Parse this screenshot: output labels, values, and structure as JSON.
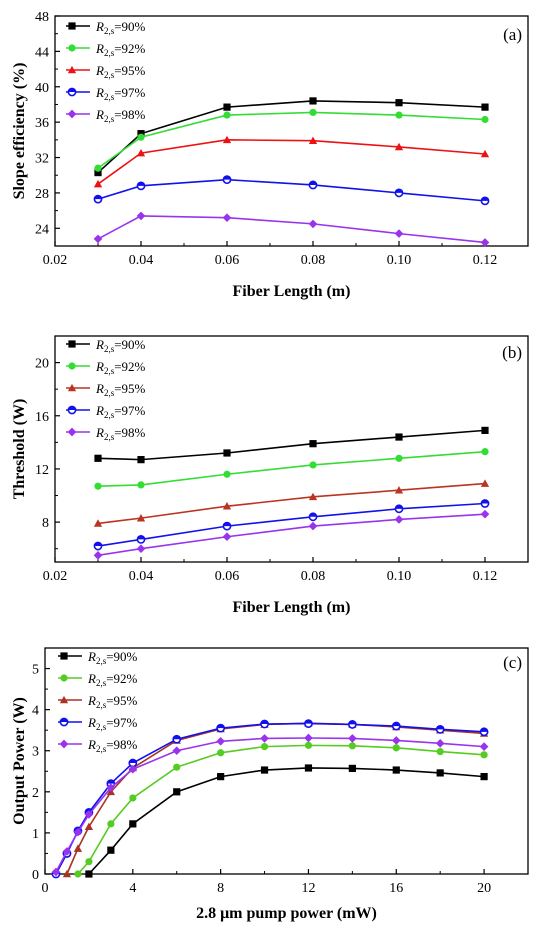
{
  "chart_data": [
    {
      "type": "line",
      "panel": "(a)",
      "xlabel": "Fiber Length (m)",
      "ylabel": "Slope efficiency (%)",
      "xlim": [
        0.02,
        0.13
      ],
      "ylim": [
        22,
        48
      ],
      "xticks": [
        "0.02",
        "0.04",
        "0.06",
        "0.08",
        "0.10",
        "0.12"
      ],
      "yticks": [
        "24",
        "28",
        "32",
        "36",
        "40",
        "44",
        "48"
      ],
      "legend_position": "top-left",
      "x": [
        0.03,
        0.04,
        0.06,
        0.08,
        0.1,
        0.12
      ],
      "series": [
        {
          "name_main": "R",
          "name_sub": "2,s",
          "name_rest": "=90%",
          "color": "#000000",
          "marker": "square",
          "values": [
            30.3,
            34.7,
            37.7,
            38.4,
            38.2,
            37.7
          ]
        },
        {
          "name_main": "R",
          "name_sub": "2,s",
          "name_rest": "=92%",
          "color": "#33dd33",
          "marker": "circle",
          "values": [
            30.8,
            34.3,
            36.8,
            37.1,
            36.8,
            36.3
          ]
        },
        {
          "name_main": "R",
          "name_sub": "2,s",
          "name_rest": "=95%",
          "color": "#ee1111",
          "marker": "triangle",
          "values": [
            29.0,
            32.5,
            34.0,
            33.9,
            33.2,
            32.4
          ]
        },
        {
          "name_main": "R",
          "name_sub": "2,s",
          "name_rest": "=97%",
          "color": "#1111ee",
          "marker": "circle-open",
          "values": [
            27.3,
            28.8,
            29.5,
            28.9,
            28.0,
            27.1
          ]
        },
        {
          "name_main": "R",
          "name_sub": "2,s",
          "name_rest": "=98%",
          "color": "#9933ee",
          "marker": "diamond",
          "values": [
            22.8,
            25.4,
            25.2,
            24.5,
            23.4,
            22.4
          ]
        }
      ]
    },
    {
      "type": "line",
      "panel": "(b)",
      "xlabel": "Fiber Length (m)",
      "ylabel": "Threshold (W)",
      "xlim": [
        0.02,
        0.13
      ],
      "ylim": [
        5,
        22
      ],
      "xticks": [
        "0.02",
        "0.04",
        "0.06",
        "0.08",
        "0.10",
        "0.12"
      ],
      "yticks": [
        "8",
        "12",
        "16",
        "20"
      ],
      "legend_position": "top-left",
      "x": [
        0.03,
        0.04,
        0.06,
        0.08,
        0.1,
        0.12
      ],
      "series": [
        {
          "name_main": "R",
          "name_sub": "2,s",
          "name_rest": "=90%",
          "color": "#000000",
          "marker": "square",
          "values": [
            12.8,
            12.7,
            13.2,
            13.9,
            14.4,
            14.9
          ]
        },
        {
          "name_main": "R",
          "name_sub": "2,s",
          "name_rest": "=92%",
          "color": "#33dd33",
          "marker": "circle",
          "values": [
            10.7,
            10.8,
            11.6,
            12.3,
            12.8,
            13.3
          ]
        },
        {
          "name_main": "R",
          "name_sub": "2,s",
          "name_rest": "=95%",
          "color": "#bb3322",
          "marker": "triangle",
          "values": [
            7.9,
            8.3,
            9.2,
            9.9,
            10.4,
            10.9
          ]
        },
        {
          "name_main": "R",
          "name_sub": "2,s",
          "name_rest": "=97%",
          "color": "#1111ee",
          "marker": "circle-open",
          "values": [
            6.2,
            6.7,
            7.7,
            8.4,
            9.0,
            9.4
          ]
        },
        {
          "name_main": "R",
          "name_sub": "2,s",
          "name_rest": "=98%",
          "color": "#9933ee",
          "marker": "diamond",
          "values": [
            5.5,
            6.0,
            6.9,
            7.7,
            8.2,
            8.6
          ]
        }
      ]
    },
    {
      "type": "line",
      "panel": "(c)",
      "xlabel": "2.8 μm pump power (mW)",
      "ylabel": "Output Power (W)",
      "xlim": [
        0,
        22
      ],
      "ylim": [
        0,
        5.5
      ],
      "xticks": [
        "0",
        "4",
        "8",
        "12",
        "16",
        "20"
      ],
      "yticks": [
        "0",
        "1",
        "2",
        "3",
        "4",
        "5"
      ],
      "legend_position": "top-left",
      "series": [
        {
          "name_main": "R",
          "name_sub": "2,s",
          "name_rest": "=90%",
          "color": "#000000",
          "marker": "square",
          "x": [
            2,
            3,
            4,
            6,
            8,
            10,
            12,
            14,
            16,
            18,
            20
          ],
          "values": [
            0.0,
            0.58,
            1.22,
            2.0,
            2.37,
            2.53,
            2.58,
            2.57,
            2.53,
            2.46,
            2.37
          ]
        },
        {
          "name_main": "R",
          "name_sub": "2,s",
          "name_rest": "=92%",
          "color": "#55cc22",
          "marker": "circle",
          "x": [
            1.5,
            2,
            3,
            4,
            6,
            8,
            10,
            12,
            14,
            16,
            18,
            20
          ],
          "values": [
            0.0,
            0.3,
            1.22,
            1.85,
            2.6,
            2.95,
            3.1,
            3.13,
            3.12,
            3.07,
            2.98,
            2.9
          ]
        },
        {
          "name_main": "R",
          "name_sub": "2,s",
          "name_rest": "=95%",
          "color": "#aa3322",
          "marker": "triangle",
          "x": [
            1,
            1.5,
            2,
            3,
            4,
            6,
            8,
            10,
            12,
            14,
            16,
            18,
            20
          ],
          "values": [
            0.0,
            0.62,
            1.15,
            2.0,
            2.58,
            3.25,
            3.53,
            3.64,
            3.67,
            3.64,
            3.58,
            3.5,
            3.42
          ]
        },
        {
          "name_main": "R",
          "name_sub": "2,s",
          "name_rest": "=97%",
          "color": "#1111ee",
          "marker": "circle-open",
          "x": [
            0.5,
            1,
            1.5,
            2,
            3,
            4,
            6,
            8,
            10,
            12,
            14,
            16,
            18,
            20
          ],
          "values": [
            0.0,
            0.5,
            1.05,
            1.5,
            2.2,
            2.7,
            3.28,
            3.55,
            3.65,
            3.66,
            3.64,
            3.6,
            3.52,
            3.46
          ]
        },
        {
          "name_main": "R",
          "name_sub": "2,s",
          "name_rest": "=98%",
          "color": "#9933ee",
          "marker": "diamond",
          "x": [
            0.5,
            1,
            1.5,
            2,
            3,
            4,
            6,
            8,
            10,
            12,
            14,
            16,
            18,
            20
          ],
          "values": [
            0.05,
            0.55,
            1.02,
            1.45,
            2.1,
            2.55,
            3.0,
            3.23,
            3.3,
            3.31,
            3.3,
            3.25,
            3.18,
            3.1
          ]
        }
      ]
    }
  ]
}
